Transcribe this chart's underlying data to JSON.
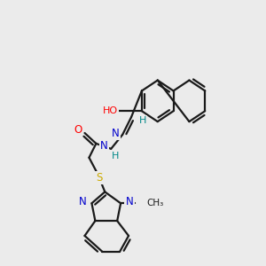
{
  "background_color": "#ebebeb",
  "bond_color": "#1a1a1a",
  "atom_colors": {
    "O": "#ff0000",
    "N": "#0000cc",
    "S": "#ccaa00",
    "C": "#1a1a1a",
    "H": "#008888"
  }
}
